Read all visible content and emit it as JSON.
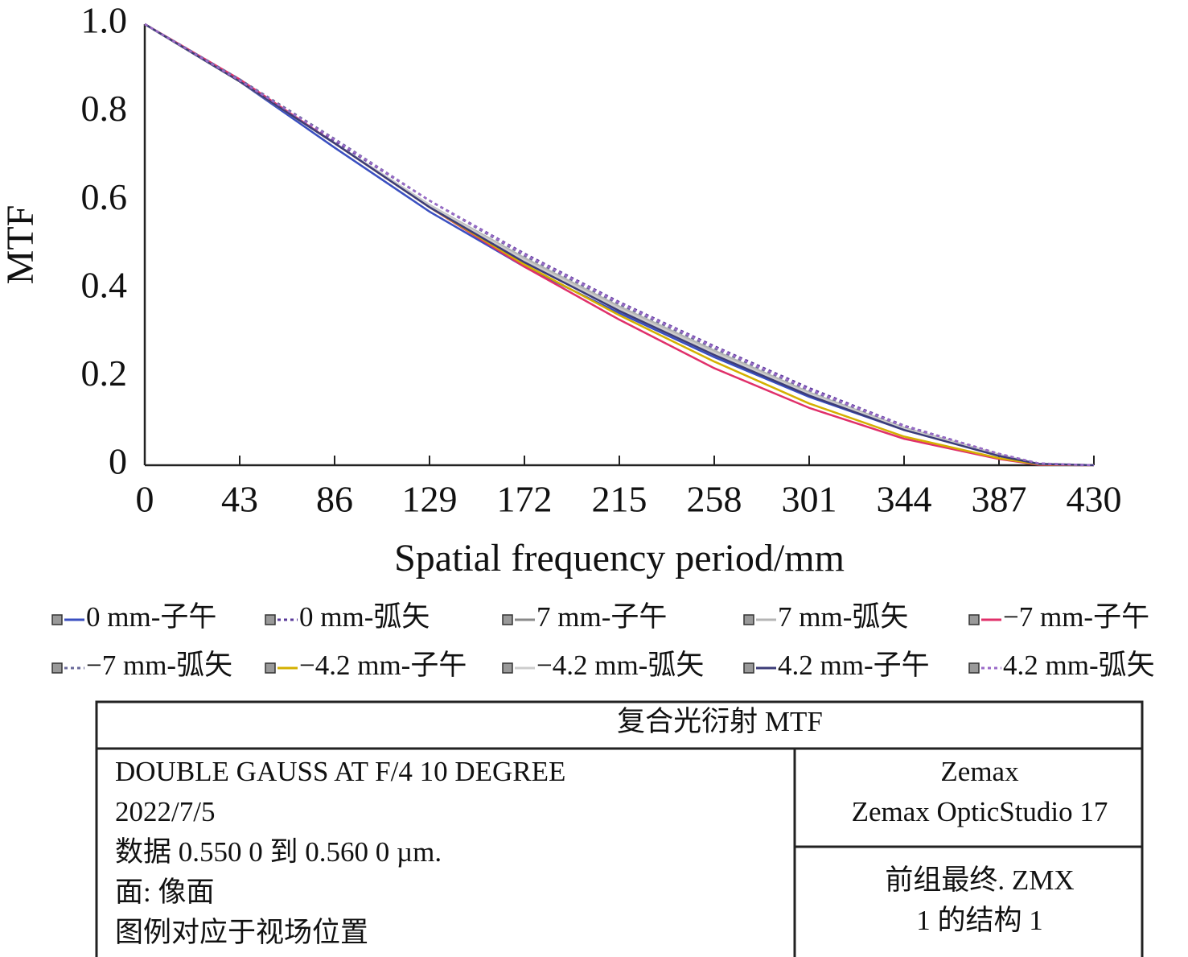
{
  "chart_data": {
    "type": "line",
    "x_label": "Spatial frequency period/mm",
    "y_label": "MTF",
    "x": [
      0,
      43,
      86,
      129,
      172,
      215,
      258,
      301,
      344,
      387,
      405,
      430
    ],
    "xlim": [
      0,
      430
    ],
    "xticks": [
      0,
      43,
      86,
      129,
      172,
      215,
      258,
      301,
      344,
      387,
      430
    ],
    "ylim": [
      0,
      1
    ],
    "yticks": [
      0,
      0.2,
      0.4,
      0.6,
      0.8,
      {
        "value": 1,
        "label": "1.0"
      }
    ],
    "series": [
      {
        "name": "0 mm-子午",
        "color": "#3a4fc0",
        "style": "solid",
        "values": [
          1,
          0.87,
          0.72,
          0.575,
          0.45,
          0.345,
          0.245,
          0.155,
          0.08,
          0.022,
          0.003,
          0
        ]
      },
      {
        "name": "0 mm-弧矢",
        "color": "#5a3a9a",
        "style": "dotted",
        "values": [
          1,
          0.87,
          0.735,
          0.6,
          0.48,
          0.37,
          0.27,
          0.175,
          0.09,
          0.026,
          0.004,
          0
        ]
      },
      {
        "name": "7 mm-子午",
        "color": "#8a8a8a",
        "style": "solid",
        "values": [
          1,
          0.87,
          0.73,
          0.59,
          0.465,
          0.355,
          0.255,
          0.16,
          0.083,
          0.022,
          0.003,
          0
        ]
      },
      {
        "name": "7 mm-弧矢",
        "color": "#b5b5b5",
        "style": "solid",
        "values": [
          1,
          0.87,
          0.73,
          0.59,
          0.47,
          0.36,
          0.26,
          0.165,
          0.085,
          0.024,
          0.003,
          0
        ]
      },
      {
        "name": "−7 mm-子午",
        "color": "#e0306a",
        "style": "solid",
        "values": [
          1,
          0.875,
          0.73,
          0.585,
          0.45,
          0.33,
          0.22,
          0.13,
          0.06,
          0.014,
          0.001,
          0
        ]
      },
      {
        "name": "−7 mm-弧矢",
        "color": "#6a6a9a",
        "style": "dotted",
        "values": [
          1,
          0.875,
          0.74,
          0.6,
          0.475,
          0.365,
          0.265,
          0.17,
          0.088,
          0.025,
          0.004,
          0
        ]
      },
      {
        "name": "−4.2 mm-子午",
        "color": "#d4b000",
        "style": "solid",
        "values": [
          1,
          0.87,
          0.73,
          0.585,
          0.455,
          0.34,
          0.235,
          0.14,
          0.065,
          0.016,
          0.002,
          0
        ]
      },
      {
        "name": "−4.2 mm-弧矢",
        "color": "#cccccc",
        "style": "solid",
        "values": [
          1,
          0.87,
          0.73,
          0.59,
          0.465,
          0.355,
          0.255,
          0.162,
          0.083,
          0.023,
          0.003,
          0
        ]
      },
      {
        "name": "4.2 mm-子午",
        "color": "#3c3c78",
        "style": "solid",
        "values": [
          1,
          0.87,
          0.73,
          0.585,
          0.46,
          0.35,
          0.25,
          0.158,
          0.08,
          0.021,
          0.003,
          0
        ]
      },
      {
        "name": "4.2 mm-弧矢",
        "color": "#9a6ac8",
        "style": "dotted",
        "values": [
          1,
          0.872,
          0.738,
          0.6,
          0.478,
          0.368,
          0.268,
          0.172,
          0.089,
          0.026,
          0.004,
          0
        ]
      }
    ]
  },
  "table": {
    "title": "复合光衍射 MTF",
    "left_lines": [
      "DOUBLE GAUSS AT F/4 10 DEGREE",
      "2022/7/5",
      "数据 0.550 0 到 0.560 0 µm.",
      "面: 像面",
      "图例对应于视场位置"
    ],
    "right_top": [
      "Zemax",
      "Zemax OpticStudio 17"
    ],
    "right_bottom": [
      "前组最终. ZMX",
      "1 的结构 1"
    ]
  }
}
